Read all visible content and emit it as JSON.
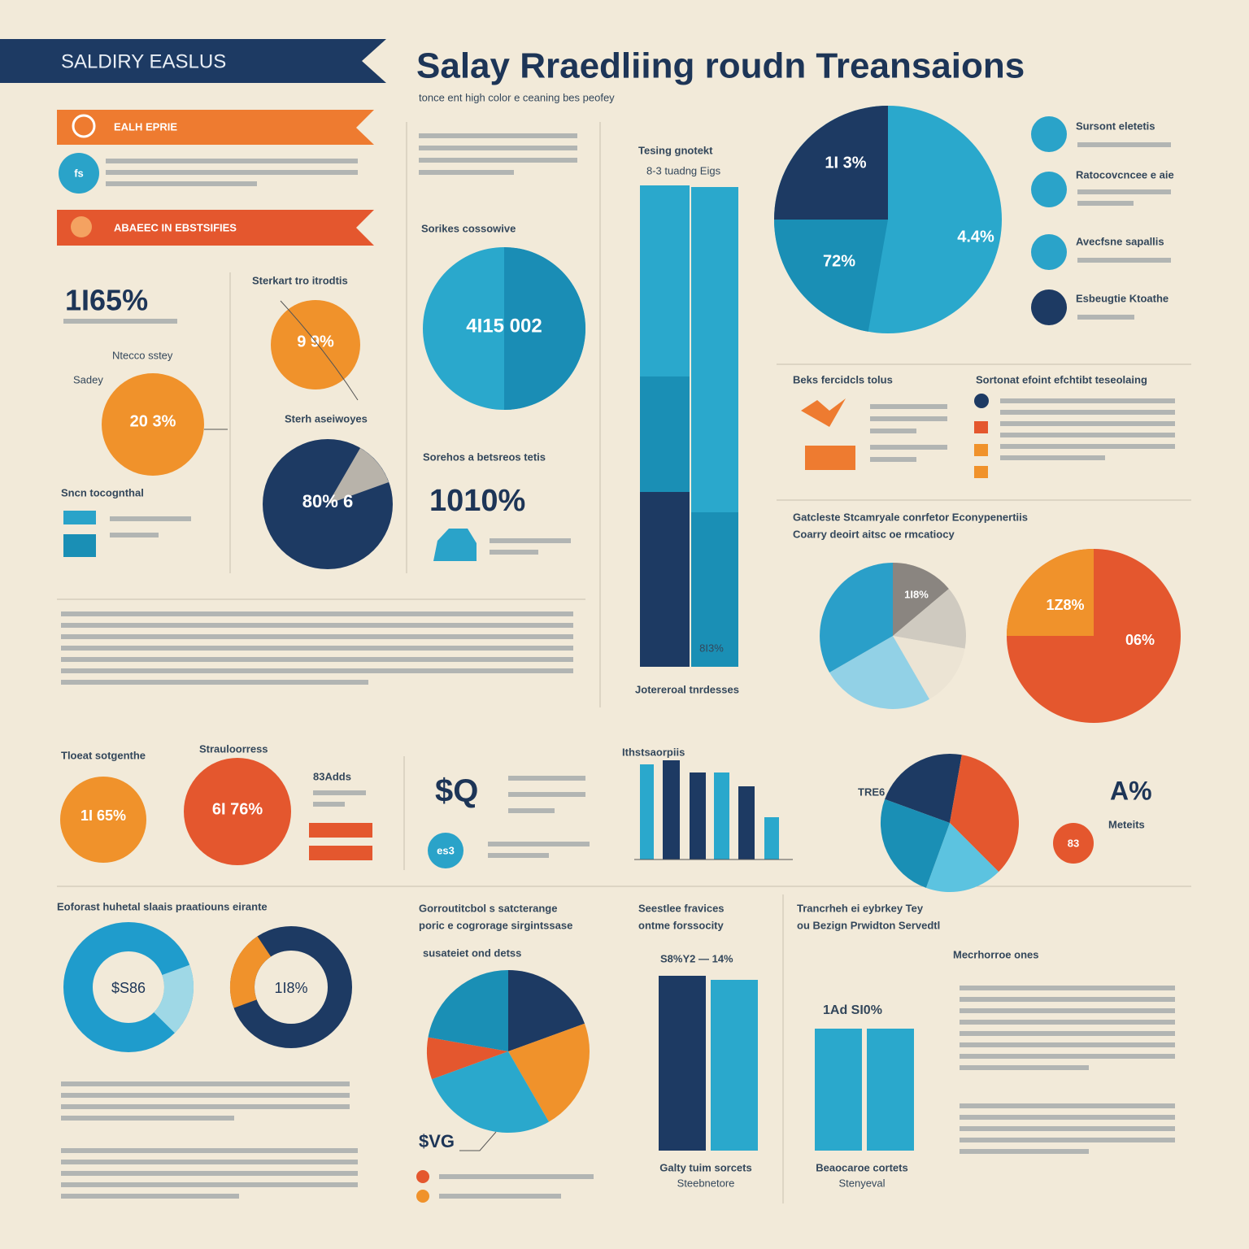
{
  "header": {
    "banner": "SALDIRY EASLUS",
    "title": "Salay Rraedliing roudn Treansaions",
    "subtitle": "tonce ent high color e ceaning bes peofey"
  },
  "left_panel": {
    "ribbon_1": "EALH EPRIE",
    "icon_1": "fs",
    "ribbon_2": "ABAEEC IN EBSTSIFIES",
    "big_stat": "1I65%",
    "label_1": "Ntecco sstey",
    "label_2": "Sadey",
    "circle_1": "20 3%",
    "legend_title": "Sncn tocognthal",
    "label_3": "Sterkart tro itrodtis",
    "circle_2": "9 9%",
    "label_4": "Sterh aseiwoyes",
    "circle_3": "80% 6"
  },
  "middle_panel": {
    "label_1": "Sorikes cossowive",
    "circle_1": "4I15 002",
    "label_2": "Sorehos a betsreos tetis",
    "big_stat": "1010%"
  },
  "tall_bars": {
    "title": "Tesing gnotekt",
    "subtitle": "8-3 tuadng Eigs",
    "value": "8I3%",
    "caption": "Jotereroal tnrdesses"
  },
  "top_pie": {
    "labels": [
      "1I 3%",
      "4.4%",
      "72%"
    ],
    "list": [
      "Sursont eletetis",
      "Ratocovcncee e aie",
      "Avecfsne sapallis",
      "Esbeugtie Ktoathe"
    ]
  },
  "right_panel": {
    "heading_1": "Beks fercidcls tolus",
    "heading_2": "Sortonat efoint efchtibt teseolaing",
    "heading_3": "Gatcleste Stcamryale conrfetor Econypenertiis",
    "heading_4": "Coarry deoirt aitsc oe rmcatiocy",
    "pie_1": "1I8%",
    "pie_2": [
      "1Z8%",
      "06%"
    ]
  },
  "row_2": {
    "label_1": "Tloeat sotgenthe",
    "circle_1": "1I 65%",
    "label_2": "Strauloorress",
    "circle_2": "6I 76%",
    "label_3": "83Adds",
    "icon_1": "$Q",
    "icon_2": "es3",
    "bars_title": "Ithstsaorpiis",
    "pie_left": "TRE6",
    "stat": "A%",
    "badge": "83",
    "badge_label": "Meteits"
  },
  "row_3": {
    "heading_1": "Eoforast huhetal slaais praatiouns eirante",
    "donut_1": "$S86",
    "donut_2": "1I8%",
    "heading_2": "Gorroutitcbol s satcterange",
    "heading_3": "poric e cogrorage sirgintssase",
    "heading_4": "susateiet ond detss",
    "pie_note": "$VG",
    "heading_5": "Seestlee fravices",
    "heading_6": "ontme forssocity",
    "bars_1_label": "S8%Y2 — 14%",
    "bars_1_caption": "Galty tuim sorcets",
    "bars_1_sub": "Steebnetore",
    "heading_7": "Trancrheh ei eybrkey Tey",
    "heading_8": "ou Bezign Prwidton Servedtl",
    "heading_9": "Mecrhorroe ones",
    "bars_2_label": "1Ad SI0%",
    "bars_2_caption": "Beaocaroe cortets",
    "bars_2_sub": "Stenyeval"
  }
}
